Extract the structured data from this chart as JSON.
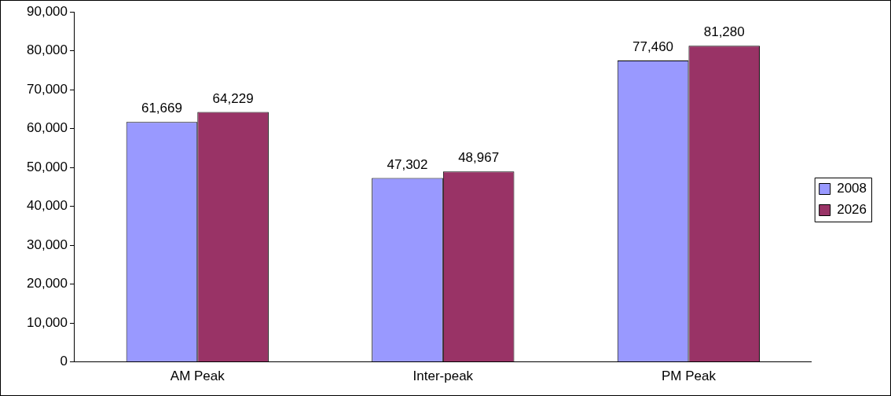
{
  "chart_data": {
    "type": "bar",
    "categories": [
      "AM Peak",
      "Inter-peak",
      "PM Peak"
    ],
    "series": [
      {
        "name": "2008",
        "color": "#9999ff",
        "values": [
          61669,
          47302,
          77460
        ],
        "value_labels": [
          "61,669",
          "47,302",
          "77,460"
        ]
      },
      {
        "name": "2026",
        "color": "#993366",
        "values": [
          64229,
          48967,
          81280
        ],
        "value_labels": [
          "64,229",
          "48,967",
          "81,280"
        ]
      }
    ],
    "ylim": [
      0,
      90000
    ],
    "yticks": [
      0,
      {
        "value": 10000,
        "label": "10,000"
      },
      {
        "value": 20000,
        "label": "20,000"
      },
      {
        "value": 30000,
        "label": "30,000"
      },
      {
        "value": 40000,
        "label": "40,000"
      },
      {
        "value": 50000,
        "label": "50,000"
      },
      {
        "value": 60000,
        "label": "60,000"
      },
      {
        "value": 70000,
        "label": "70,000"
      },
      {
        "value": 80000,
        "label": "80,000"
      },
      {
        "value": 90000,
        "label": "90,000"
      }
    ],
    "grid": false,
    "legend": "right"
  }
}
